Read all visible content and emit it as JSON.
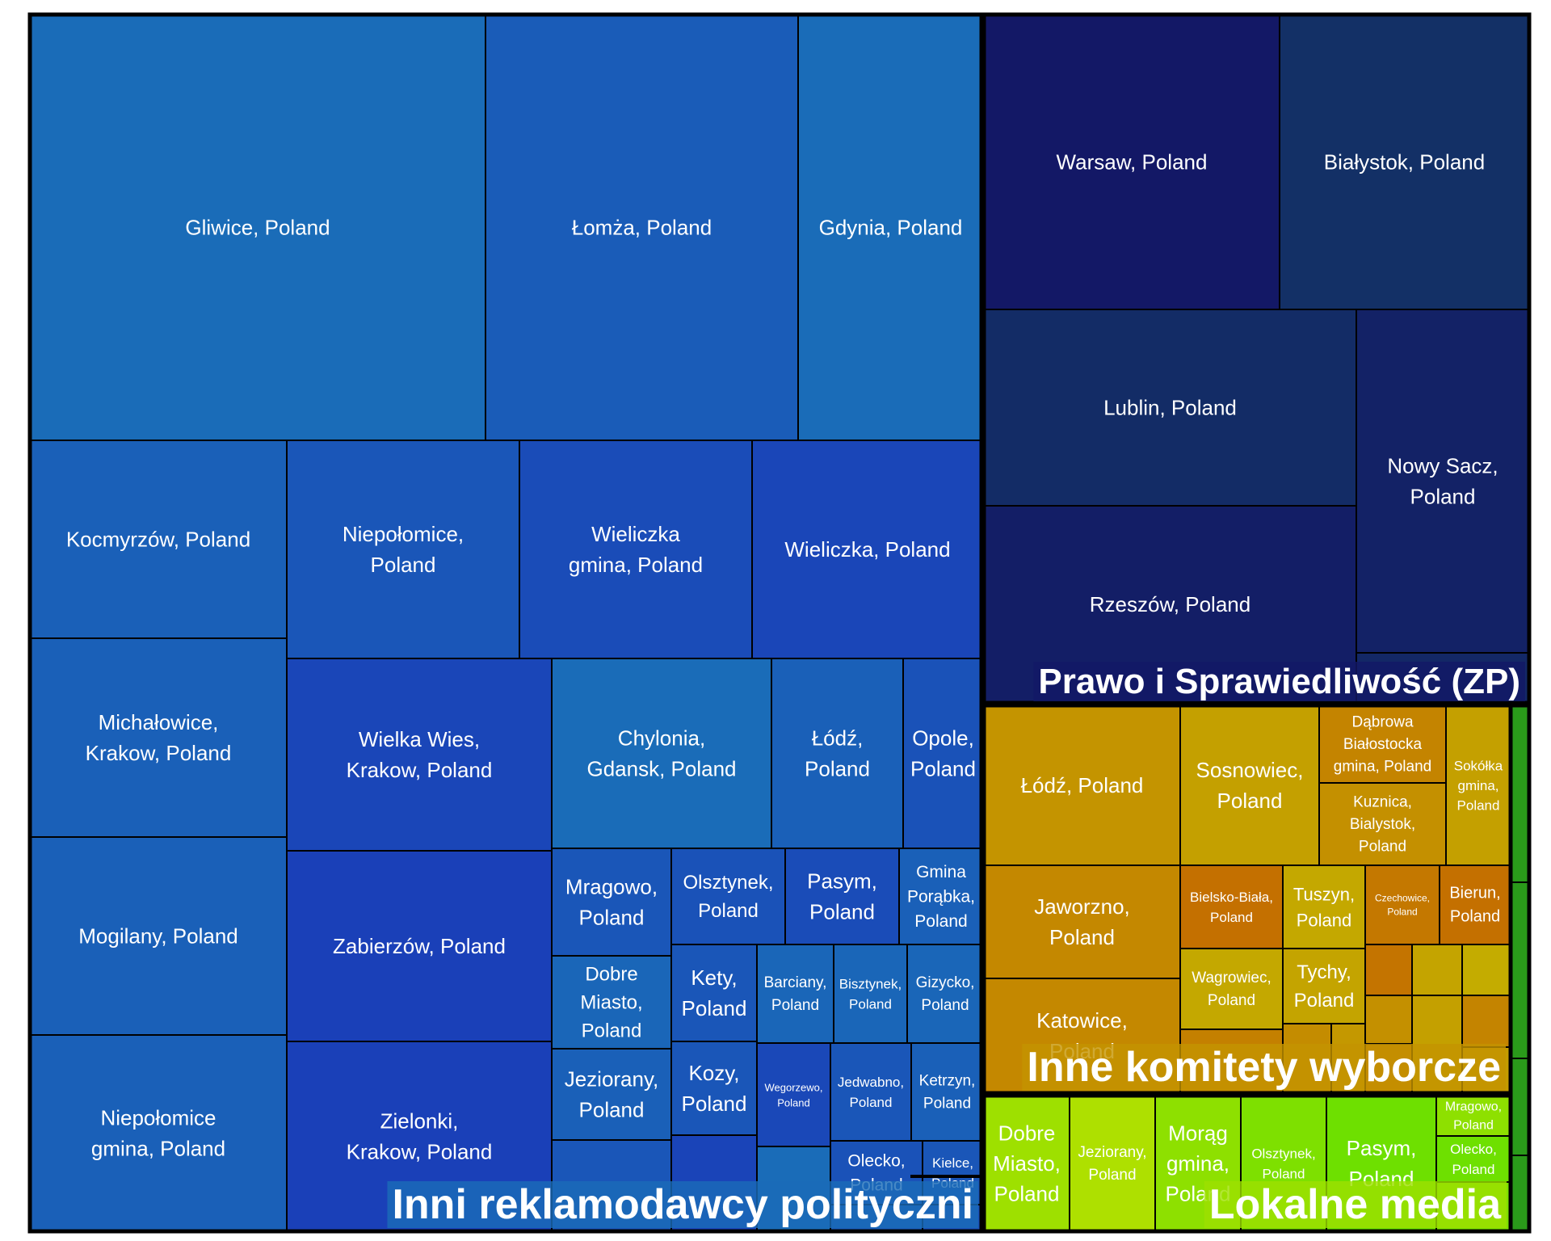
{
  "chart_data": {
    "type": "treemap",
    "groups": [
      {
        "name": "Inni reklamodawcy polityczni",
        "tiles": [
          {
            "label": "Gliwice, Poland",
            "color": "#1a6cb8"
          },
          {
            "label": "Łomża, Poland",
            "color": "#1a5cb8"
          },
          {
            "label": "Gdynia, Poland",
            "color": "#1a6cb8"
          },
          {
            "label": "Kocmyrzów, Poland",
            "color": "#1a60b8"
          },
          {
            "label": "Niepołomice, Poland",
            "color": "#1a56b8"
          },
          {
            "label": "Wieliczka gmina, Poland",
            "color": "#1a4cb8"
          },
          {
            "label": "Wieliczka, Poland",
            "color": "#1a46b8"
          },
          {
            "label": "Michałowice, Krakow, Poland",
            "color": "#1a60b8"
          },
          {
            "label": "Wielka Wies, Krakow, Poland",
            "color": "#1a46b8"
          },
          {
            "label": "Chylonia, Gdansk, Poland",
            "color": "#1a6cb8"
          },
          {
            "label": "Łódź, Poland",
            "color": "#1a60b8"
          },
          {
            "label": "Opole, Poland",
            "color": "#1a52b8"
          },
          {
            "label": "Mogilany, Poland",
            "color": "#1a60b8"
          },
          {
            "label": "Zabierzów, Poland",
            "color": "#1a40b8"
          },
          {
            "label": "Mragowo, Poland",
            "color": "#1a56b8"
          },
          {
            "label": "Olsztynek, Poland",
            "color": "#1a52b8"
          },
          {
            "label": "Pasym, Poland",
            "color": "#1a4cb8"
          },
          {
            "label": "Gmina Porąbka, Poland",
            "color": "#1a60b8"
          },
          {
            "label": "Dobre Miasto, Poland",
            "color": "#1a66b8"
          },
          {
            "label": "Kety, Poland",
            "color": "#1a56b8"
          },
          {
            "label": "Barciany, Poland",
            "color": "#1a66b8"
          },
          {
            "label": "Bisztynek, Poland",
            "color": "#1a66b8"
          },
          {
            "label": "Gizycko, Poland",
            "color": "#1a66b8"
          },
          {
            "label": "Niepołomice gmina, Poland",
            "color": "#1a60b8"
          },
          {
            "label": "Zielonki, Krakow, Poland",
            "color": "#1a40b8"
          },
          {
            "label": "Jeziorany, Poland",
            "color": "#1a60b8"
          },
          {
            "label": "Kozy, Poland",
            "color": "#1a56b8"
          },
          {
            "label": "Wegorzewo, Poland",
            "color": "#1a48b8"
          },
          {
            "label": "Jedwabno, Poland",
            "color": "#1a56b8"
          },
          {
            "label": "Ketrzyn, Poland",
            "color": "#1a60b8"
          },
          {
            "label": "Olecko, Poland",
            "color": "#1a52b8"
          },
          {
            "label": "Kielce, Poland",
            "color": "#1a56b8"
          },
          {
            "label": "",
            "color": "#1a56b8"
          },
          {
            "label": "",
            "color": "#1a44b8"
          },
          {
            "label": "",
            "color": "#1a6cb8"
          },
          {
            "label": "",
            "color": "#1a5cb8"
          },
          {
            "label": "",
            "color": "#1a50b8"
          },
          {
            "label": "",
            "color": "#1a5cb8"
          }
        ]
      },
      {
        "name": "Prawo i Sprawiedliwość (ZP)",
        "tiles": [
          {
            "label": "Warsaw, Poland",
            "color": "#131866"
          },
          {
            "label": "Białystok, Poland",
            "color": "#133066"
          },
          {
            "label": "Lublin, Poland",
            "color": "#132c66"
          },
          {
            "label": "Nowy Sacz, Poland",
            "color": "#132266"
          },
          {
            "label": "Rzeszów, Poland",
            "color": "#131e66"
          },
          {
            "label": "",
            "color": "#132866"
          }
        ]
      },
      {
        "name": "Inne komitety wyborcze",
        "tiles": [
          {
            "label": "Łódź, Poland",
            "color": "#c49400"
          },
          {
            "label": "Sosnowiec, Poland",
            "color": "#c4a000"
          },
          {
            "label": "Dąbrowa Białostocka gmina, Poland",
            "color": "#c48400"
          },
          {
            "label": "Sokółka gmina, Poland",
            "color": "#c4a000"
          },
          {
            "label": "Kuznica, Bialystok, Poland",
            "color": "#c49000"
          },
          {
            "label": "Jaworzno, Poland",
            "color": "#c48800"
          },
          {
            "label": "Bielsko-Biała, Poland",
            "color": "#c47000"
          },
          {
            "label": "Tuszyn, Poland",
            "color": "#c4a800"
          },
          {
            "label": "Czechowice, Poland",
            "color": "#c47800"
          },
          {
            "label": "Bierun, Poland",
            "color": "#c47000"
          },
          {
            "label": "Wagrowiec, Poland",
            "color": "#c4a800"
          },
          {
            "label": "Tychy, Poland",
            "color": "#c4a400"
          },
          {
            "label": "Katowice, Poland",
            "color": "#c48800"
          },
          {
            "label": "",
            "color": "#c48000"
          },
          {
            "label": "",
            "color": "#c48c00"
          },
          {
            "label": "",
            "color": "#c49800"
          },
          {
            "label": "",
            "color": "#c47400"
          },
          {
            "label": "",
            "color": "#c4a400"
          },
          {
            "label": "",
            "color": "#c4ac00"
          },
          {
            "label": "",
            "color": "#c49000"
          },
          {
            "label": "",
            "color": "#c47800"
          },
          {
            "label": "",
            "color": "#c4a000"
          },
          {
            "label": "",
            "color": "#c48400"
          },
          {
            "label": "",
            "color": "#c49c00"
          }
        ]
      },
      {
        "name": "Lokalne media",
        "tiles": [
          {
            "label": "Dobre Miasto, Poland",
            "color": "#9ee000"
          },
          {
            "label": "Jeziorany, Poland",
            "color": "#aee000"
          },
          {
            "label": "Morąg gmina, Poland",
            "color": "#8ee000"
          },
          {
            "label": "Olsztynek, Poland",
            "color": "#7ee000"
          },
          {
            "label": "Pasym, Poland",
            "color": "#6ee000"
          },
          {
            "label": "Mragowo, Poland",
            "color": "#8ee000"
          },
          {
            "label": "Olecko, Poland",
            "color": "#6ee000"
          },
          {
            "label": "",
            "color": "#7ee000"
          }
        ]
      },
      {
        "name": "",
        "tiles": [
          {
            "label": "",
            "color": "#2a9a1a"
          },
          {
            "label": "",
            "color": "#2a9a1a"
          },
          {
            "label": "",
            "color": "#2a9a1a"
          },
          {
            "label": "",
            "color": "#2a9a1a"
          }
        ]
      }
    ]
  }
}
